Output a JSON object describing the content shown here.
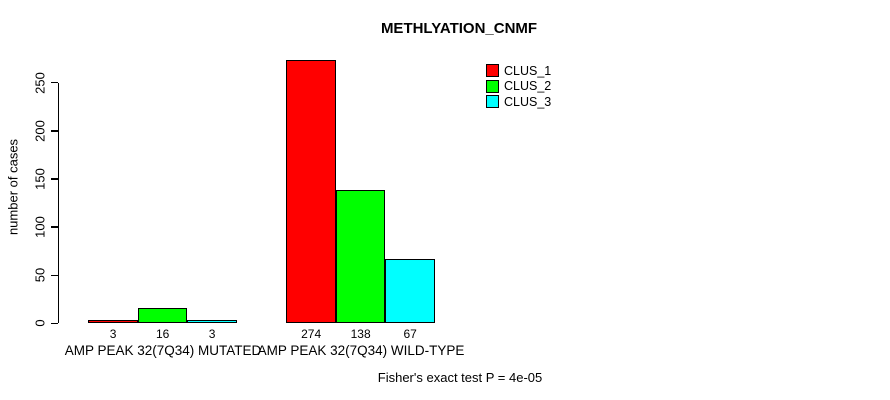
{
  "chart_data": {
    "type": "bar",
    "title": "METHLYATION_CNMF",
    "ylabel": "number of cases",
    "xlabel": "",
    "categories": [
      "AMP PEAK 32(7Q34) MUTATED",
      "AMP PEAK 32(7Q34) WILD-TYPE"
    ],
    "series": [
      {
        "name": "CLUS_1",
        "color": "#ff0000",
        "values": [
          3,
          274
        ]
      },
      {
        "name": "CLUS_2",
        "color": "#00ff00",
        "values": [
          16,
          138
        ]
      },
      {
        "name": "CLUS_3",
        "color": "#00ffff",
        "values": [
          3,
          67
        ]
      }
    ],
    "yticks": [
      0,
      50,
      100,
      150,
      200,
      250
    ],
    "ylim": [
      0,
      280
    ],
    "grid": false,
    "bar_outline_color": "#000000",
    "show_bar_values": true,
    "legend_position": "upper-right-of-plot",
    "annotation": "Fisher's exact test P = 4e-05"
  }
}
